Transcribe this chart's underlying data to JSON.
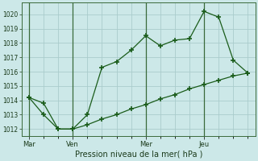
{
  "background_color": "#cce8e8",
  "grid_color": "#aacccc",
  "line_color": "#1a5c1a",
  "title": "Pression niveau de la mer( hPa )",
  "x_tick_labels": [
    "Mar",
    "Ven",
    "Mer",
    "Jeu"
  ],
  "x_tick_positions": [
    1,
    4,
    9,
    13
  ],
  "xlim": [
    0.5,
    16.5
  ],
  "ylim": [
    1011.5,
    1020.8
  ],
  "yticks": [
    1012,
    1013,
    1014,
    1015,
    1016,
    1017,
    1018,
    1019,
    1020
  ],
  "line1_x": [
    1,
    2,
    3,
    4,
    5,
    6,
    7,
    8,
    9,
    10,
    11,
    12,
    13,
    14,
    15,
    16
  ],
  "line1_y": [
    1014.2,
    1013.0,
    1012.0,
    1012.0,
    1013.0,
    1016.3,
    1016.7,
    1017.5,
    1018.5,
    1017.8,
    1018.2,
    1018.3,
    1020.2,
    1019.8,
    1016.8,
    1015.9
  ],
  "line2_x": [
    1,
    2,
    3,
    4,
    5,
    6,
    7,
    8,
    9,
    10,
    11,
    12,
    13,
    14,
    15,
    16
  ],
  "line2_y": [
    1014.2,
    1013.8,
    1012.0,
    1012.0,
    1012.3,
    1012.7,
    1013.0,
    1013.4,
    1013.7,
    1014.1,
    1014.4,
    1014.8,
    1015.1,
    1015.4,
    1015.7,
    1015.9
  ],
  "vline_positions": [
    1,
    4,
    9,
    13
  ],
  "figsize": [
    3.2,
    2.0
  ],
  "dpi": 100
}
